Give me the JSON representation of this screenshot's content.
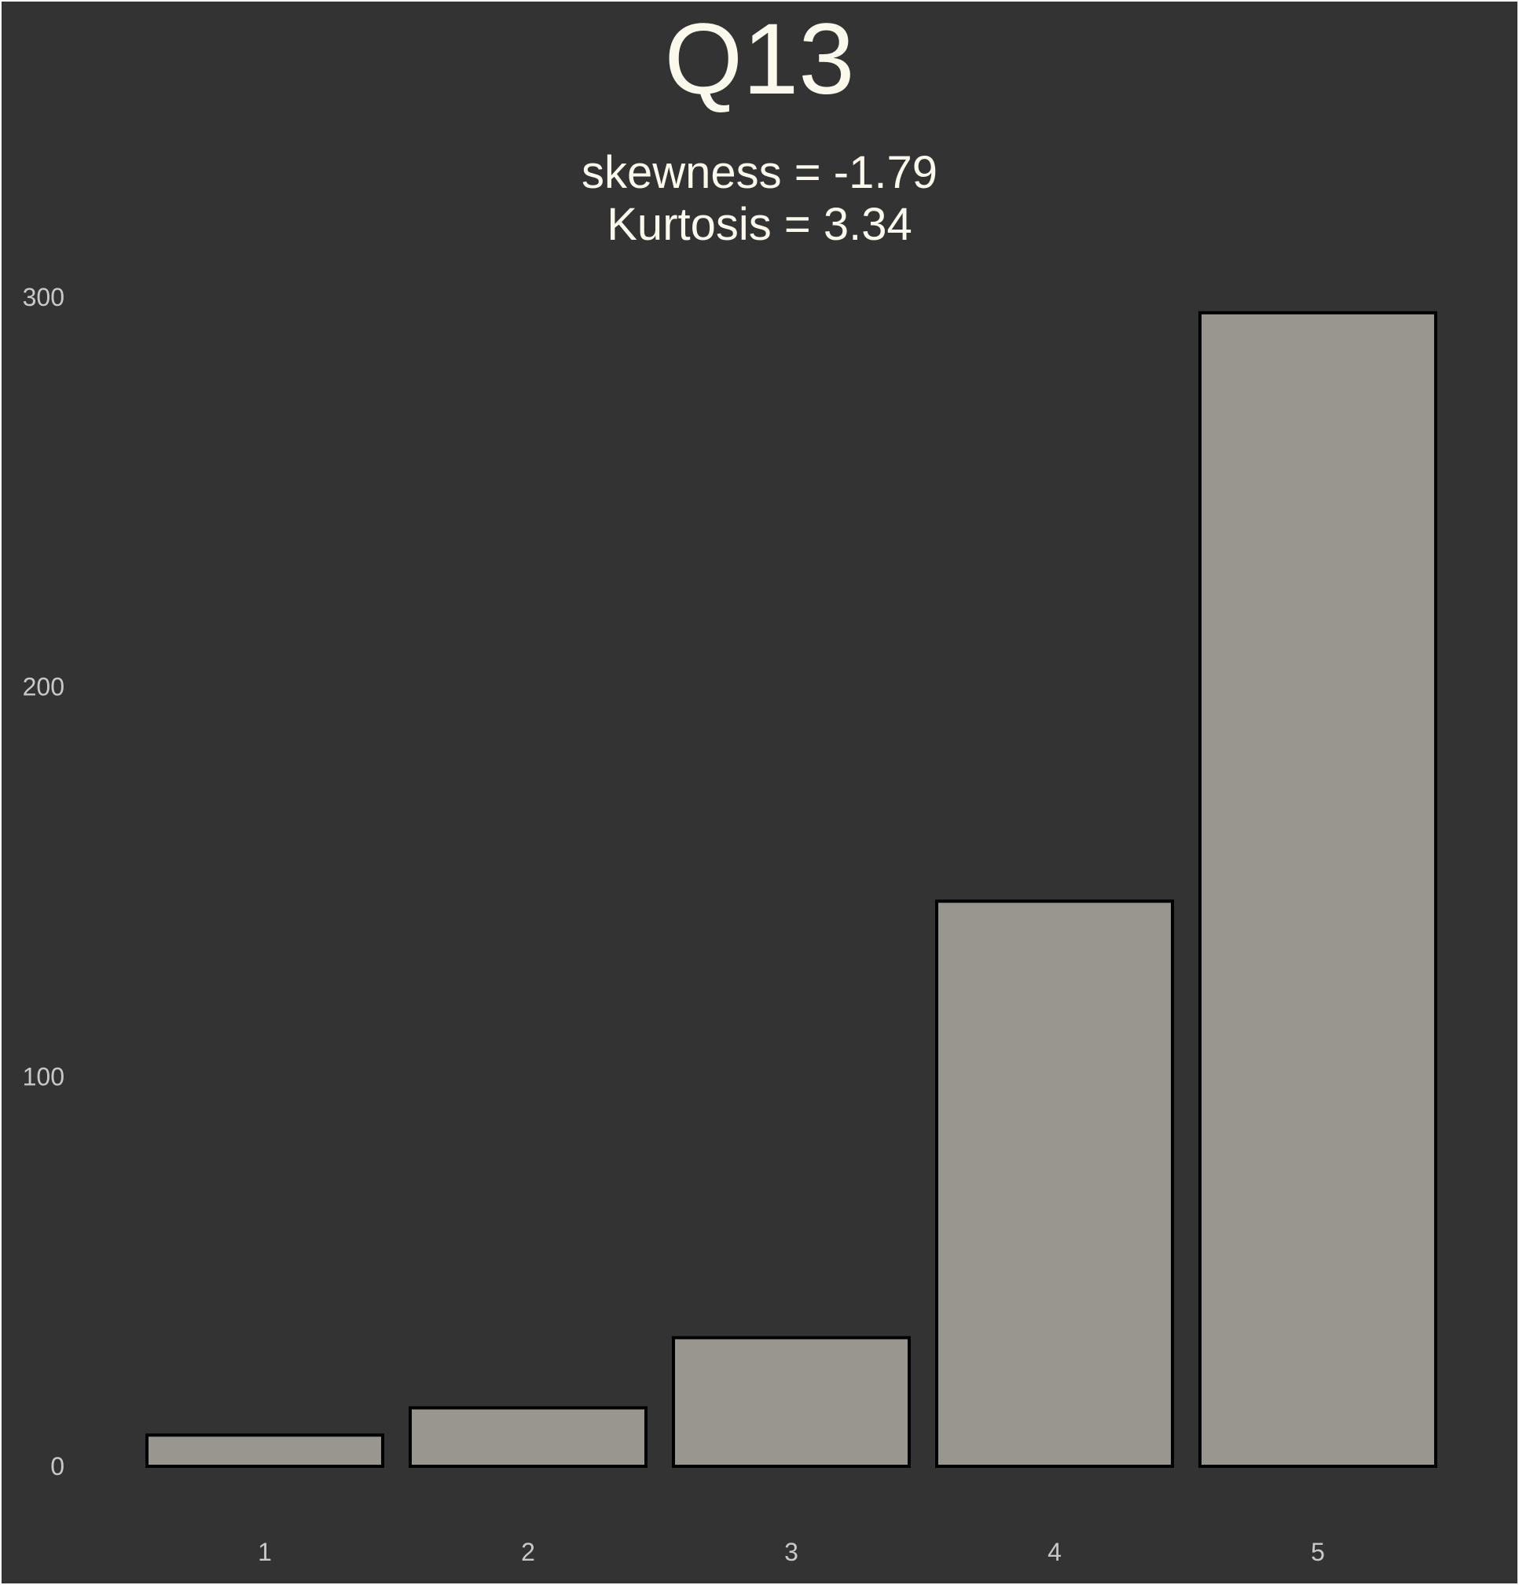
{
  "chart_data": {
    "type": "bar",
    "title": "Q13",
    "subtitle_lines": [
      "skewness = -1.79",
      "Kurtosis = 3.34"
    ],
    "categories": [
      "1",
      "2",
      "3",
      "4",
      "5"
    ],
    "values": [
      8,
      15,
      33,
      145,
      296
    ],
    "xlabel": "",
    "ylabel": "",
    "ylim": [
      0,
      300
    ],
    "yticks": [
      "0",
      "100",
      "200",
      "300"
    ],
    "grid": false,
    "legend": "none"
  },
  "colors": {
    "background": "#333333",
    "bar_fill": "#99968f",
    "bar_stroke": "#000000",
    "title": "#fbf8ec",
    "tick_text": "#c9c9c9"
  }
}
